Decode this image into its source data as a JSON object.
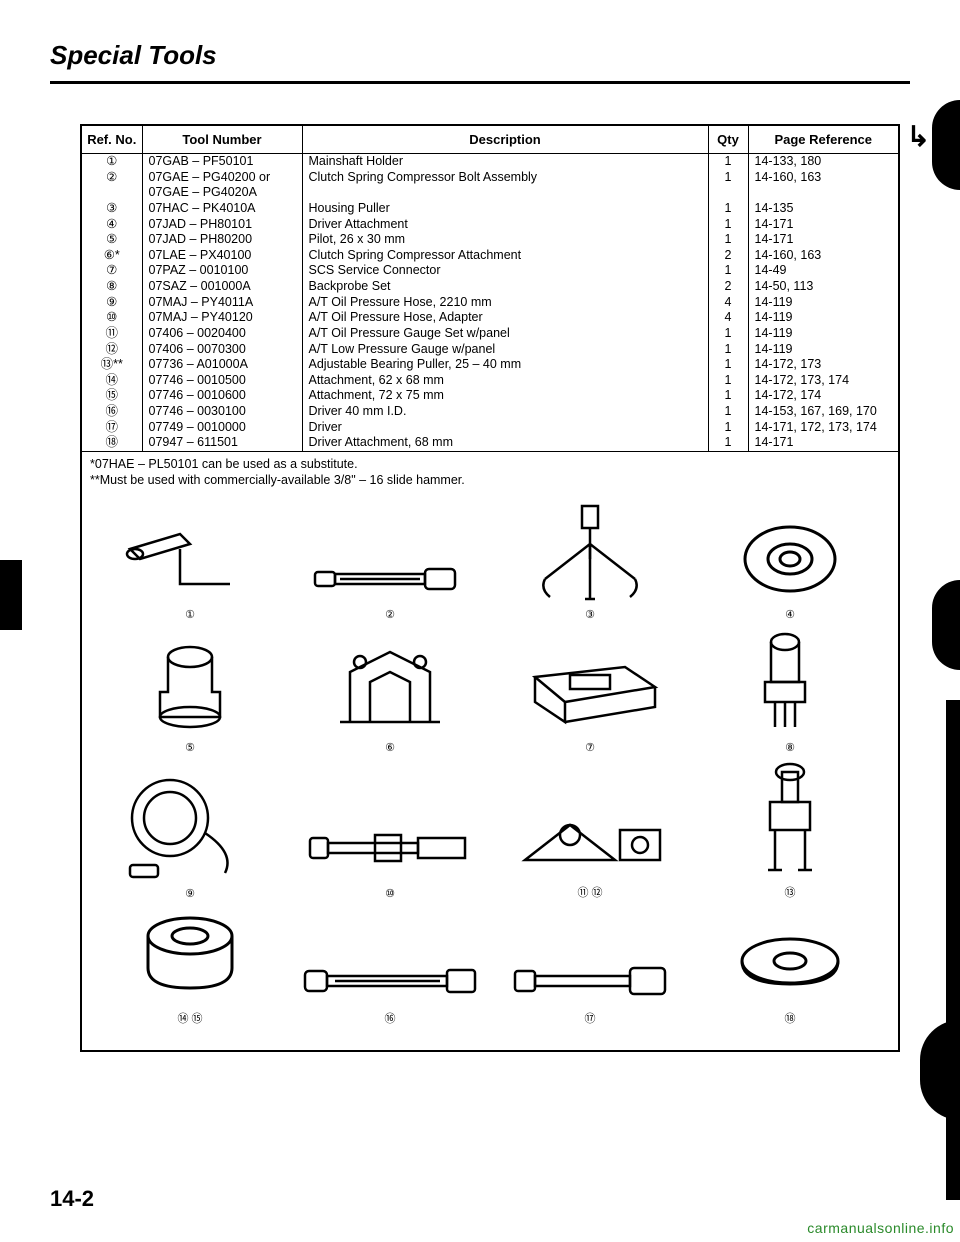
{
  "title": "Special Tools",
  "table": {
    "headers": [
      "Ref. No.",
      "Tool Number",
      "Description",
      "Qty",
      "Page Reference"
    ],
    "rows": [
      {
        "ref": "①",
        "refmark": "",
        "tn": "07GAB – PF50101",
        "desc": "Mainshaft Holder",
        "qty": "1",
        "pg": "14-133, 180"
      },
      {
        "ref": "②",
        "refmark": "",
        "tn": "07GAE – PG40200 or\n07GAE – PG4020A",
        "desc": "Clutch Spring Compressor Bolt Assembly",
        "qty": "1",
        "pg": "14-160, 163"
      },
      {
        "ref": "③",
        "refmark": "",
        "tn": "07HAC – PK4010A",
        "desc": "Housing Puller",
        "qty": "1",
        "pg": "14-135"
      },
      {
        "ref": "④",
        "refmark": "",
        "tn": "07JAD – PH80101",
        "desc": "Driver Attachment",
        "qty": "1",
        "pg": "14-171"
      },
      {
        "ref": "⑤",
        "refmark": "",
        "tn": "07JAD – PH80200",
        "desc": "Pilot, 26 x 30 mm",
        "qty": "1",
        "pg": "14-171"
      },
      {
        "ref": "⑥",
        "refmark": "*",
        "tn": "07LAE – PX40100",
        "desc": "Clutch Spring Compressor Attachment",
        "qty": "2",
        "pg": "14-160, 163"
      },
      {
        "ref": "⑦",
        "refmark": "",
        "tn": "07PAZ – 0010100",
        "desc": "SCS Service Connector",
        "qty": "1",
        "pg": "14-49"
      },
      {
        "ref": "⑧",
        "refmark": "",
        "tn": "07SAZ – 001000A",
        "desc": "Backprobe Set",
        "qty": "2",
        "pg": "14-50, 113"
      },
      {
        "ref": "⑨",
        "refmark": "",
        "tn": "07MAJ – PY4011A",
        "desc": "A/T Oil Pressure Hose, 2210 mm",
        "qty": "4",
        "pg": "14-119"
      },
      {
        "ref": "⑩",
        "refmark": "",
        "tn": "07MAJ – PY40120",
        "desc": "A/T Oil Pressure Hose, Adapter",
        "qty": "4",
        "pg": "14-119"
      },
      {
        "ref": "⑪",
        "refmark": "",
        "tn": "07406 – 0020400",
        "desc": "A/T Oil Pressure Gauge Set w/panel",
        "qty": "1",
        "pg": "14-119"
      },
      {
        "ref": "⑫",
        "refmark": "",
        "tn": "07406 – 0070300",
        "desc": "A/T Low Pressure Gauge w/panel",
        "qty": "1",
        "pg": "14-119"
      },
      {
        "ref": "⑬",
        "refmark": "**",
        "tn": "07736 – A01000A",
        "desc": "Adjustable Bearing Puller, 25 – 40 mm",
        "qty": "1",
        "pg": "14-172, 173"
      },
      {
        "ref": "⑭",
        "refmark": "",
        "tn": "07746 – 0010500",
        "desc": "Attachment, 62 x 68 mm",
        "qty": "1",
        "pg": "14-172, 173, 174"
      },
      {
        "ref": "⑮",
        "refmark": "",
        "tn": "07746 – 0010600",
        "desc": "Attachment, 72 x 75 mm",
        "qty": "1",
        "pg": "14-172, 174"
      },
      {
        "ref": "⑯",
        "refmark": "",
        "tn": "07746 – 0030100",
        "desc": "Driver 40 mm I.D.",
        "qty": "1",
        "pg": "14-153, 167, 169, 170"
      },
      {
        "ref": "⑰",
        "refmark": "",
        "tn": "07749 – 0010000",
        "desc": "Driver",
        "qty": "1",
        "pg": "14-171, 172, 173, 174"
      },
      {
        "ref": "⑱",
        "refmark": "",
        "tn": "07947 – 611501",
        "desc": "Driver Attachment, 68 mm",
        "qty": "1",
        "pg": "14-171"
      }
    ]
  },
  "notes": [
    "*07HAE – PL50101 can be used as a substitute.",
    "**Must be used with commercially-available 3/8\" – 16 slide hammer."
  ],
  "illustration_rows": [
    [
      "①",
      "②",
      "③",
      "④"
    ],
    [
      "⑤",
      "⑥",
      "⑦",
      "⑧"
    ],
    [
      "⑨",
      "⑩",
      "⑪  ⑫",
      "⑬"
    ],
    [
      "⑭  ⑮",
      "⑯",
      "⑰",
      "⑱"
    ]
  ],
  "page_number": "14-2",
  "watermark": "carmanualsonline.info",
  "curve_mark": "↳"
}
